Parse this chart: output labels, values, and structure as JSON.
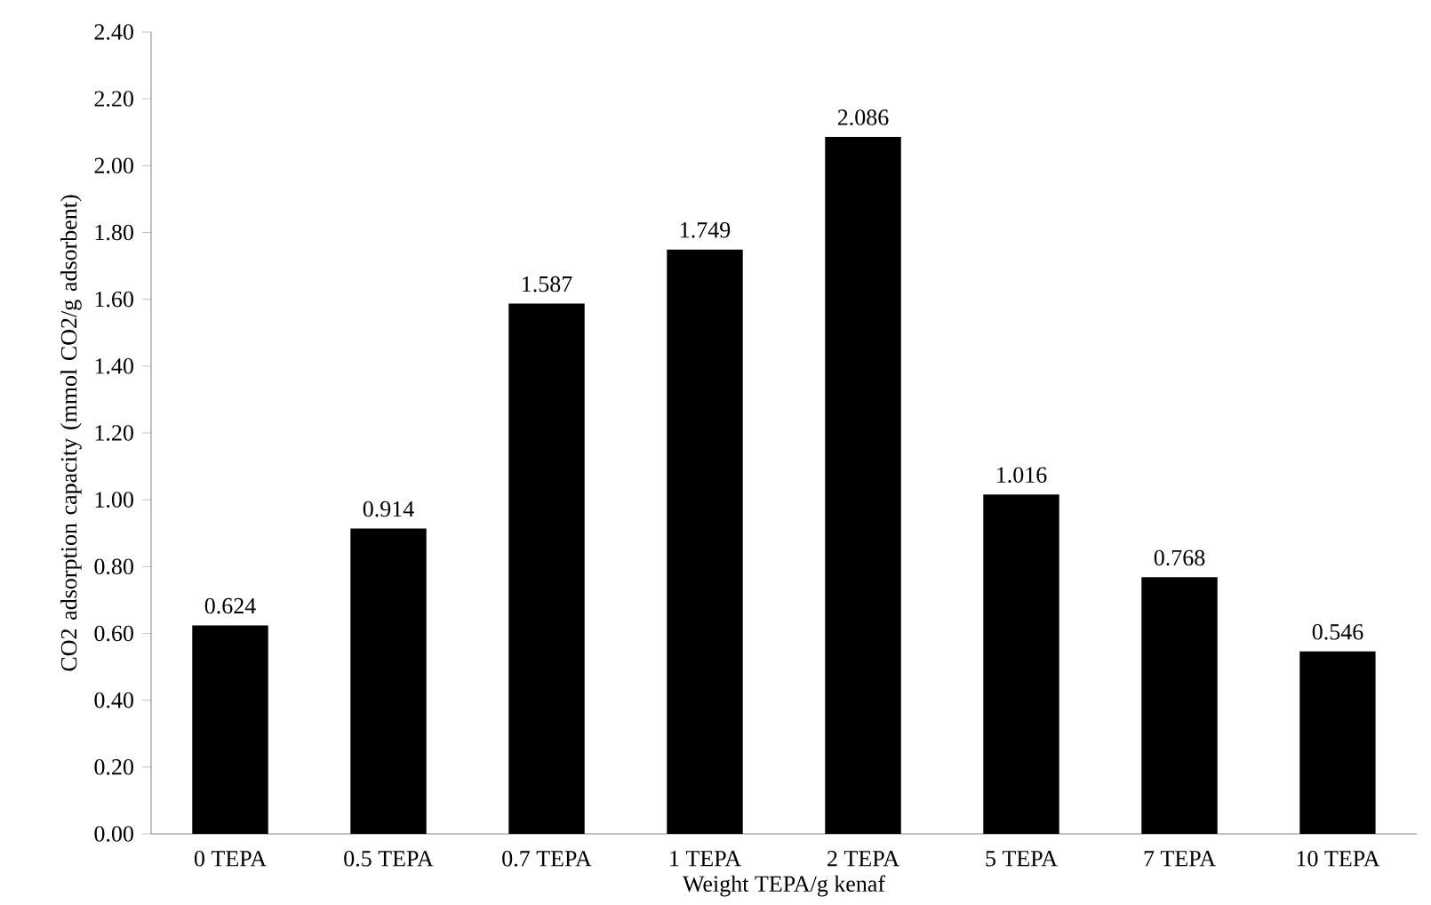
{
  "chart_data": {
    "type": "bar",
    "xlabel": "Weight TEPA/g kenaf",
    "ylabel": "CO2 adsorption capacity (mmol CO2/g adsorbent)",
    "categories": [
      "0 TEPA",
      "0.5 TEPA",
      "0.7 TEPA",
      "1 TEPA",
      "2 TEPA",
      "5 TEPA",
      "7 TEPA",
      "10 TEPA"
    ],
    "values": [
      0.624,
      0.914,
      1.587,
      1.749,
      2.086,
      1.016,
      0.768,
      0.546
    ],
    "color": "#000000",
    "data_labels": true,
    "grid": false,
    "ylim": [
      0,
      2.4
    ],
    "yticks": [
      {
        "value": 0,
        "label": "0.00"
      },
      {
        "value": 0.2,
        "label": "0.20"
      },
      {
        "value": 0.4,
        "label": "0.40"
      },
      {
        "value": 0.6,
        "label": "0.60"
      },
      {
        "value": 0.8,
        "label": "0.80"
      },
      {
        "value": 1.0,
        "label": "1.00"
      },
      {
        "value": 1.2,
        "label": "1.20"
      },
      {
        "value": 1.4,
        "label": "1.40"
      },
      {
        "value": 1.6,
        "label": "1.60"
      },
      {
        "value": 1.8,
        "label": "1.80"
      },
      {
        "value": 2.0,
        "label": "2.00"
      },
      {
        "value": 2.2,
        "label": "2.20"
      },
      {
        "value": 2.4,
        "label": "2.40"
      }
    ]
  }
}
